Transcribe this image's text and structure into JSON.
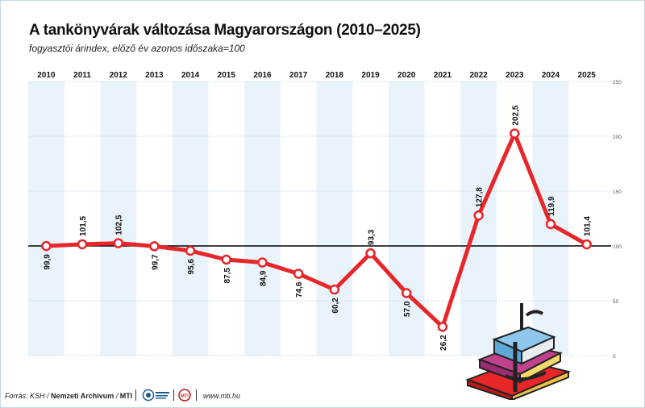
{
  "title": "A tankönyvárak változása Magyarországon (2010–2025)",
  "subtitle": "fogyasztói árindex, előző év azonos időszaka=100",
  "footer": {
    "prefix": "Forrás: KSH / ",
    "archive": "Nemzeti Archívum",
    "suffix": " / ",
    "mti": "MTI",
    "website": "www.mti.hu",
    "mti_logo_text": "MTI"
  },
  "colors": {
    "line": "#e8262a",
    "stripe": "#e8f3fb",
    "baseline": "#000000",
    "frame": "#c9d6e2"
  },
  "chart_data": {
    "type": "line",
    "x": [
      "2010",
      "2011",
      "2012",
      "2013",
      "2014",
      "2015",
      "2016",
      "2017",
      "2018",
      "2019",
      "2020",
      "2021",
      "2022",
      "2023",
      "2024",
      "2025"
    ],
    "series": [
      {
        "values": [
          99.9,
          101.5,
          102.5,
          99.7,
          95.6,
          87.5,
          84.9,
          74.6,
          60.2,
          93.3,
          57.0,
          26.2,
          127.8,
          202.5,
          119.9,
          101.4
        ],
        "labels": [
          "99,9",
          "101,5",
          "102,5",
          "99,7",
          "95,6",
          "87,5",
          "84,9",
          "74,6",
          "60,2",
          "93,3",
          "57,0",
          "26,2",
          "127,8",
          "202,5",
          "119,9",
          "101,4"
        ]
      }
    ],
    "ylim": [
      0,
      250
    ],
    "yticks": [
      "0",
      "50",
      "100",
      "150",
      "200",
      "250"
    ],
    "reference_line": 100,
    "grid": true,
    "label_below": [
      true,
      false,
      false,
      true,
      true,
      true,
      true,
      true,
      true,
      false,
      true,
      true,
      false,
      false,
      false,
      false
    ]
  }
}
